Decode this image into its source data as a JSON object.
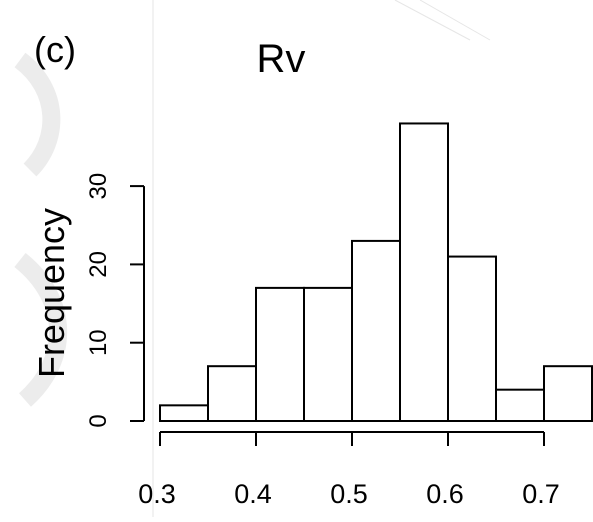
{
  "panel_label": "(c)",
  "chart_data": {
    "type": "bar",
    "title": "Rv",
    "xlabel": "",
    "ylabel": "Frequency",
    "bins": [
      {
        "from": 0.3,
        "to": 0.35,
        "count": 2
      },
      {
        "from": 0.35,
        "to": 0.4,
        "count": 7
      },
      {
        "from": 0.4,
        "to": 0.45,
        "count": 17
      },
      {
        "from": 0.45,
        "to": 0.5,
        "count": 17
      },
      {
        "from": 0.5,
        "to": 0.55,
        "count": 23
      },
      {
        "from": 0.55,
        "to": 0.6,
        "count": 38
      },
      {
        "from": 0.6,
        "to": 0.65,
        "count": 21
      },
      {
        "from": 0.65,
        "to": 0.7,
        "count": 4
      },
      {
        "from": 0.7,
        "to": 0.75,
        "count": 7
      }
    ],
    "xticks": [
      {
        "value": 0.3,
        "label": "0.3"
      },
      {
        "value": 0.4,
        "label": "0.4"
      },
      {
        "value": 0.5,
        "label": "0.5"
      },
      {
        "value": 0.6,
        "label": "0.6"
      },
      {
        "value": 0.7,
        "label": "0.7"
      }
    ],
    "yticks": [
      {
        "value": 0,
        "label": "0"
      },
      {
        "value": 10,
        "label": "10"
      },
      {
        "value": 20,
        "label": "20"
      },
      {
        "value": 30,
        "label": "30"
      }
    ],
    "xlim": [
      0.3,
      0.75
    ],
    "ylim": [
      0,
      38
    ],
    "grid": false
  }
}
